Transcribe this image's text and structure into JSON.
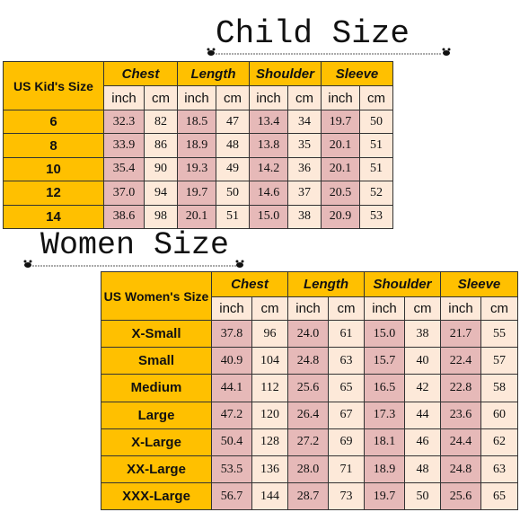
{
  "child": {
    "title": "Child Size",
    "table": {
      "corner": "US Kid's Size",
      "groups": [
        "Chest",
        "Length",
        "Shoulder",
        "Sleeve"
      ],
      "units": [
        "inch",
        "cm",
        "inch",
        "cm",
        "inch",
        "cm",
        "inch",
        "cm"
      ],
      "rows": [
        [
          "6",
          "32.3",
          "82",
          "18.5",
          "47",
          "13.4",
          "34",
          "19.7",
          "50"
        ],
        [
          "8",
          "33.9",
          "86",
          "18.9",
          "48",
          "13.8",
          "35",
          "20.1",
          "51"
        ],
        [
          "10",
          "35.4",
          "90",
          "19.3",
          "49",
          "14.2",
          "36",
          "20.1",
          "51"
        ],
        [
          "12",
          "37.0",
          "94",
          "19.7",
          "50",
          "14.6",
          "37",
          "20.5",
          "52"
        ],
        [
          "14",
          "38.6",
          "98",
          "20.1",
          "51",
          "15.0",
          "38",
          "20.9",
          "53"
        ]
      ]
    }
  },
  "women": {
    "title": "Women Size",
    "table": {
      "corner": "US Women's Size",
      "groups": [
        "Chest",
        "Length",
        "Shoulder",
        "Sleeve"
      ],
      "units": [
        "inch",
        "cm",
        "inch",
        "cm",
        "inch",
        "cm",
        "inch",
        "cm"
      ],
      "rows": [
        [
          "X-Small",
          "37.8",
          "96",
          "24.0",
          "61",
          "15.0",
          "38",
          "21.7",
          "55"
        ],
        [
          "Small",
          "40.9",
          "104",
          "24.8",
          "63",
          "15.7",
          "40",
          "22.4",
          "57"
        ],
        [
          "Medium",
          "44.1",
          "112",
          "25.6",
          "65",
          "16.5",
          "42",
          "22.8",
          "58"
        ],
        [
          "Large",
          "47.2",
          "120",
          "26.4",
          "67",
          "17.3",
          "44",
          "23.6",
          "60"
        ],
        [
          "X-Large",
          "50.4",
          "128",
          "27.2",
          "69",
          "18.1",
          "46",
          "24.4",
          "62"
        ],
        [
          "XX-Large",
          "53.5",
          "136",
          "28.0",
          "71",
          "18.9",
          "48",
          "24.8",
          "63"
        ],
        [
          "XXX-Large",
          "56.7",
          "144",
          "28.7",
          "73",
          "19.7",
          "50",
          "25.6",
          "65"
        ]
      ]
    }
  }
}
